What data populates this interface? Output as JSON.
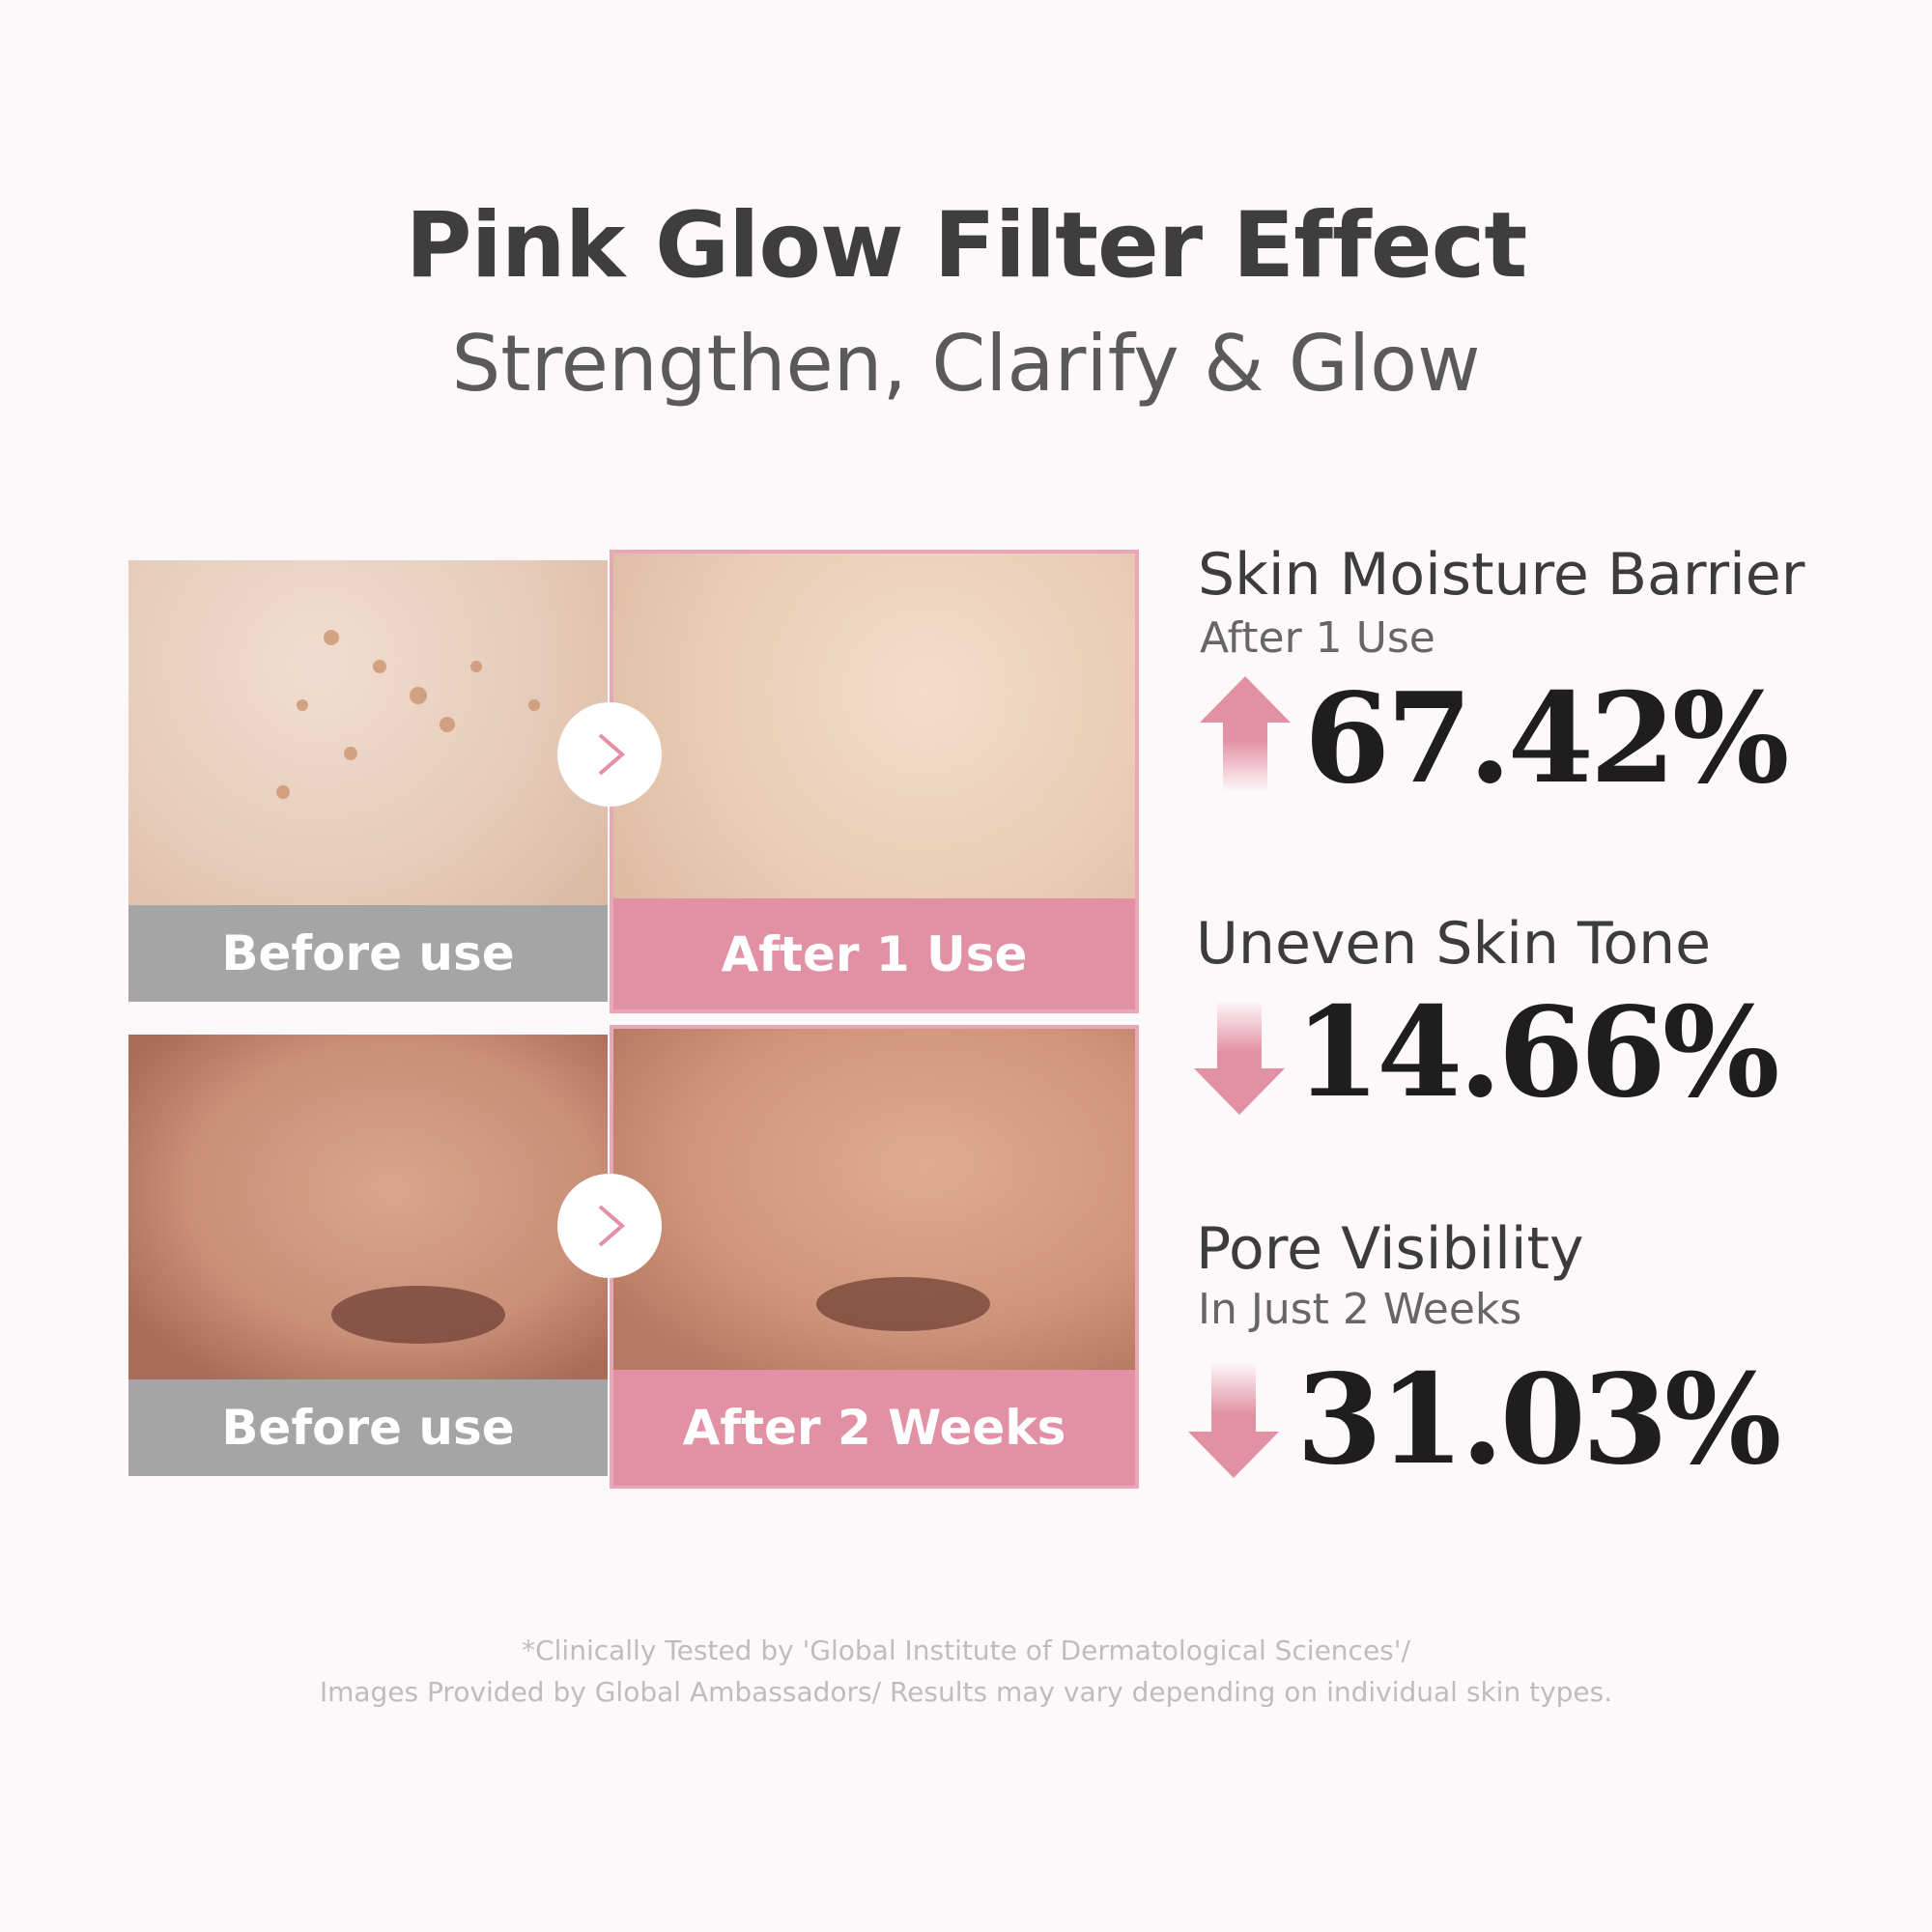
{
  "header": {
    "title": "Pink Glow Filter Effect",
    "subtitle": "Strengthen, Clarify & Glow"
  },
  "comparisons": [
    {
      "before_label": "Before use",
      "after_label": "After 1 Use"
    },
    {
      "before_label": "Before use",
      "after_label": "After 2 Weeks"
    }
  ],
  "stats": [
    {
      "title": "Skin Moisture Barrier",
      "subtitle": "After 1 Use",
      "direction": "up",
      "value": "67.42%"
    },
    {
      "title": "Uneven Skin Tone",
      "direction": "down",
      "value": "14.66%"
    },
    {
      "title": "Pore Visibility",
      "subtitle": "In Just 2 Weeks",
      "direction": "down",
      "value": "31.03%"
    }
  ],
  "footer": {
    "line1": "*Clinically Tested by 'Global Institute of Dermatological Sciences'/",
    "line2": "Images Provided by Global Ambassadors/ Results may vary depending on individual skin types."
  },
  "colors": {
    "accent": "#e291a4",
    "gray": "#a5a5a5",
    "text": "#3e3e3e"
  }
}
